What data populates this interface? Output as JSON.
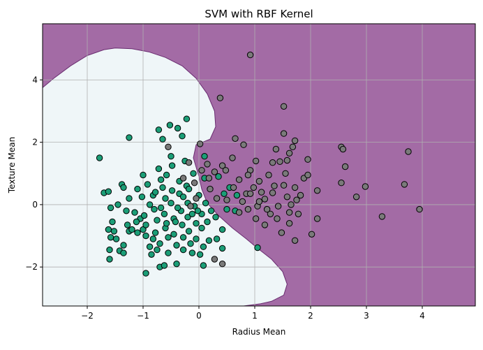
{
  "chart_data": {
    "type": "scatter",
    "title": "SVM with RBF Kernel",
    "xlabel": "Radius Mean",
    "ylabel": "Texture Mean",
    "xlim": [
      -2.8,
      4.95
    ],
    "ylim": [
      -3.25,
      5.8
    ],
    "xticks": [
      -2,
      -1,
      0,
      1,
      2,
      3,
      4
    ],
    "yticks": [
      -2,
      0,
      2,
      4
    ],
    "xtick_labels": [
      "−2",
      "−1",
      "0",
      "1",
      "2",
      "3",
      "4"
    ],
    "ytick_labels": [
      "−2",
      "0",
      "2",
      "4"
    ],
    "grid": true,
    "colors": {
      "region_class_0": "#eff6f8",
      "region_class_1": "#a36ba5",
      "boundary": "#6a2c70",
      "class_0_point": "#1b9e77",
      "class_1_point": "#7a7a7a",
      "point_edge": "#000000",
      "grid": "#b0b0b0"
    },
    "decision_region_class_0_outline": [
      [
        -2.8,
        3.75
      ],
      [
        -2.6,
        4.05
      ],
      [
        -2.3,
        4.45
      ],
      [
        -2.0,
        4.78
      ],
      [
        -1.7,
        4.97
      ],
      [
        -1.5,
        5.02
      ],
      [
        -1.2,
        5.0
      ],
      [
        -0.9,
        4.9
      ],
      [
        -0.6,
        4.72
      ],
      [
        -0.3,
        4.45
      ],
      [
        -0.05,
        4.05
      ],
      [
        0.15,
        3.55
      ],
      [
        0.28,
        3.0
      ],
      [
        0.3,
        2.5
      ],
      [
        0.2,
        2.1
      ],
      [
        -0.05,
        1.92
      ],
      [
        -0.1,
        1.5
      ],
      [
        0.0,
        0.9
      ],
      [
        0.05,
        0.5
      ],
      [
        0.15,
        0.05
      ],
      [
        0.35,
        -0.35
      ],
      [
        0.6,
        -0.75
      ],
      [
        0.85,
        -1.1
      ],
      [
        1.05,
        -1.4
      ],
      [
        1.3,
        -1.75
      ],
      [
        1.5,
        -2.15
      ],
      [
        1.58,
        -2.55
      ],
      [
        1.52,
        -2.9
      ],
      [
        1.3,
        -3.1
      ],
      [
        1.1,
        -3.18
      ],
      [
        0.8,
        -3.25
      ],
      [
        -2.8,
        -3.25
      ],
      [
        -2.8,
        3.75
      ]
    ],
    "series": [
      {
        "class": 0,
        "points": [
          [
            -1.78,
            1.5
          ],
          [
            -1.7,
            0.38
          ],
          [
            -1.62,
            0.42
          ],
          [
            -1.58,
            -0.1
          ],
          [
            -1.55,
            -0.55
          ],
          [
            -1.62,
            -0.8
          ],
          [
            -1.52,
            -0.85
          ],
          [
            -1.58,
            -1.05
          ],
          [
            -1.48,
            -1.1
          ],
          [
            -1.6,
            -1.45
          ],
          [
            -1.6,
            -1.75
          ],
          [
            -1.42,
            -1.48
          ],
          [
            -1.35,
            -1.55
          ],
          [
            -1.35,
            -1.3
          ],
          [
            -1.45,
            0.0
          ],
          [
            -1.38,
            0.65
          ],
          [
            -1.35,
            0.55
          ],
          [
            -1.3,
            -0.2
          ],
          [
            -1.25,
            0.2
          ],
          [
            -1.28,
            -0.65
          ],
          [
            -1.25,
            -0.85
          ],
          [
            -1.2,
            -0.8
          ],
          [
            -1.25,
            2.15
          ],
          [
            -1.1,
            -0.9
          ],
          [
            -1.15,
            -0.25
          ],
          [
            -1.1,
            0.5
          ],
          [
            -1.0,
            0.95
          ],
          [
            -1.02,
            0.25
          ],
          [
            -1.05,
            -0.45
          ],
          [
            -1.0,
            -0.8
          ],
          [
            -0.95,
            -1.0
          ],
          [
            -0.92,
            0.65
          ],
          [
            -0.95,
            -0.65
          ],
          [
            -0.88,
            -1.35
          ],
          [
            -0.85,
            -1.6
          ],
          [
            -0.95,
            -2.2
          ],
          [
            -0.82,
            -1.1
          ],
          [
            -0.82,
            0.3
          ],
          [
            -0.8,
            -0.15
          ],
          [
            -0.75,
            -0.5
          ],
          [
            -0.78,
            -0.9
          ],
          [
            -0.7,
            -1.25
          ],
          [
            -0.75,
            -1.45
          ],
          [
            -0.7,
            -2.0
          ],
          [
            -0.62,
            -1.95
          ],
          [
            -0.72,
            2.4
          ],
          [
            -0.65,
            2.1
          ],
          [
            -0.72,
            1.15
          ],
          [
            -0.68,
            0.8
          ],
          [
            -0.65,
            0.55
          ],
          [
            -0.6,
            0.2
          ],
          [
            -0.62,
            -0.3
          ],
          [
            -0.6,
            -0.75
          ],
          [
            -0.55,
            -1.05
          ],
          [
            -0.55,
            -1.55
          ],
          [
            -0.52,
            2.55
          ],
          [
            -0.5,
            1.55
          ],
          [
            -0.48,
            1.25
          ],
          [
            -0.5,
            0.05
          ],
          [
            -0.45,
            -0.45
          ],
          [
            -0.45,
            -0.95
          ],
          [
            -0.4,
            -1.3
          ],
          [
            -0.4,
            -1.9
          ],
          [
            -0.38,
            2.45
          ],
          [
            -0.35,
            0.75
          ],
          [
            -0.35,
            0.35
          ],
          [
            -0.32,
            -0.2
          ],
          [
            -0.3,
            -0.65
          ],
          [
            -0.28,
            -1.05
          ],
          [
            -0.3,
            2.2
          ],
          [
            -0.25,
            1.4
          ],
          [
            -0.22,
            0.6
          ],
          [
            -0.2,
            0.05
          ],
          [
            -0.2,
            -0.4
          ],
          [
            -0.18,
            -0.85
          ],
          [
            -0.15,
            -1.25
          ],
          [
            -0.22,
            2.75
          ],
          [
            -0.1,
            1.0
          ],
          [
            -0.08,
            -0.05
          ],
          [
            -0.05,
            -0.6
          ],
          [
            -0.05,
            -1.1
          ],
          [
            0.0,
            0.3
          ],
          [
            0.05,
            -0.3
          ],
          [
            0.05,
            -0.75
          ],
          [
            0.08,
            -1.35
          ],
          [
            0.1,
            0.85
          ],
          [
            0.12,
            0.05
          ],
          [
            0.15,
            -0.55
          ],
          [
            0.18,
            -1.15
          ],
          [
            0.1,
            1.55
          ],
          [
            -1.12,
            -0.55
          ],
          [
            -0.98,
            -0.35
          ],
          [
            -0.88,
            0.0
          ],
          [
            -0.78,
            0.4
          ],
          [
            -0.68,
            -0.1
          ],
          [
            -0.58,
            0.95
          ],
          [
            -0.48,
            0.45
          ],
          [
            -0.38,
            -0.1
          ],
          [
            -0.28,
            0.25
          ],
          [
            -0.18,
            0.5
          ],
          [
            -0.12,
            -0.3
          ],
          [
            -0.02,
            -0.2
          ],
          [
            0.02,
            -1.6
          ],
          [
            0.08,
            -1.95
          ],
          [
            0.3,
            -0.4
          ],
          [
            0.42,
            -0.8
          ],
          [
            0.5,
            -0.15
          ],
          [
            0.65,
            -0.2
          ],
          [
            0.68,
            0.3
          ],
          [
            0.45,
            0.35
          ],
          [
            0.22,
            -0.2
          ],
          [
            0.35,
            0.9
          ],
          [
            0.32,
            -1.1
          ],
          [
            0.42,
            -1.4
          ],
          [
            1.05,
            -1.38
          ],
          [
            0.55,
            0.55
          ],
          [
            -0.58,
            -0.6
          ],
          [
            -0.42,
            -0.55
          ],
          [
            -0.28,
            -1.45
          ],
          [
            -0.12,
            -1.55
          ]
        ]
      },
      {
        "class": 1,
        "points": [
          [
            0.92,
            4.8
          ],
          [
            0.38,
            3.42
          ],
          [
            1.52,
            3.15
          ],
          [
            1.52,
            2.28
          ],
          [
            0.65,
            2.12
          ],
          [
            0.8,
            1.92
          ],
          [
            1.38,
            1.78
          ],
          [
            1.62,
            1.65
          ],
          [
            1.72,
            2.05
          ],
          [
            1.68,
            1.85
          ],
          [
            1.95,
            1.45
          ],
          [
            2.55,
            1.85
          ],
          [
            2.58,
            1.78
          ],
          [
            2.62,
            1.22
          ],
          [
            3.75,
            1.7
          ],
          [
            3.68,
            0.65
          ],
          [
            2.98,
            0.58
          ],
          [
            2.82,
            0.25
          ],
          [
            2.55,
            0.7
          ],
          [
            2.12,
            0.45
          ],
          [
            2.12,
            -0.45
          ],
          [
            2.02,
            -0.95
          ],
          [
            3.28,
            -0.38
          ],
          [
            3.95,
            -0.15
          ],
          [
            1.45,
            1.38
          ],
          [
            1.32,
            1.35
          ],
          [
            1.58,
            1.42
          ],
          [
            1.25,
            0.95
          ],
          [
            1.08,
            0.75
          ],
          [
            0.98,
            0.55
          ],
          [
            0.85,
            0.35
          ],
          [
            0.78,
            0.1
          ],
          [
            0.88,
            -0.15
          ],
          [
            1.02,
            -0.45
          ],
          [
            1.18,
            -0.65
          ],
          [
            1.28,
            -0.3
          ],
          [
            1.42,
            -0.05
          ],
          [
            1.58,
            0.25
          ],
          [
            1.72,
            0.55
          ],
          [
            1.88,
            0.85
          ],
          [
            1.78,
            -0.3
          ],
          [
            1.62,
            -0.6
          ],
          [
            1.48,
            -0.9
          ],
          [
            1.72,
            -1.15
          ],
          [
            1.52,
            0.62
          ],
          [
            1.32,
            0.38
          ],
          [
            1.18,
            0.18
          ],
          [
            1.05,
            -0.05
          ],
          [
            0.6,
            1.5
          ],
          [
            0.42,
            1.25
          ],
          [
            0.28,
            1.05
          ],
          [
            0.15,
            1.3
          ],
          [
            0.05,
            1.1
          ],
          [
            -0.08,
            0.7
          ],
          [
            0.2,
            0.5
          ],
          [
            0.32,
            0.2
          ],
          [
            0.5,
            0.15
          ],
          [
            0.62,
            0.55
          ],
          [
            0.72,
            0.8
          ],
          [
            0.92,
            1.1
          ],
          [
            1.12,
            0.4
          ],
          [
            1.22,
            -0.15
          ],
          [
            1.4,
            -0.45
          ],
          [
            1.65,
            0.0
          ],
          [
            1.82,
            0.3
          ],
          [
            1.95,
            0.95
          ],
          [
            0.72,
            -0.25
          ],
          [
            0.92,
            0.35
          ],
          [
            1.35,
            0.6
          ],
          [
            0.28,
            -1.75
          ],
          [
            0.42,
            -1.9
          ],
          [
            0.02,
            1.95
          ],
          [
            -0.18,
            1.35
          ],
          [
            -0.28,
            0.85
          ],
          [
            -0.55,
            1.85
          ],
          [
            -0.05,
            0.2
          ],
          [
            -0.15,
            -0.05
          ],
          [
            0.18,
            0.85
          ],
          [
            0.48,
            1.1
          ],
          [
            0.88,
            0.95
          ],
          [
            1.02,
            1.4
          ],
          [
            1.08,
            0.1
          ],
          [
            1.55,
            1.0
          ],
          [
            1.75,
            0.15
          ],
          [
            1.62,
            -0.25
          ]
        ]
      }
    ]
  }
}
